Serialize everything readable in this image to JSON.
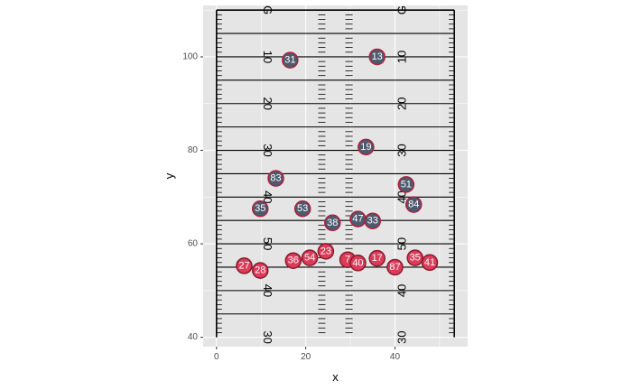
{
  "chart_data": {
    "type": "scatter",
    "title": "",
    "xlabel": "x",
    "ylabel": "y",
    "xlim": [
      -3,
      56.3
    ],
    "ylim": [
      38,
      111
    ],
    "x_ticks": [
      0,
      20,
      40
    ],
    "y_ticks": [
      40,
      60,
      80,
      100
    ],
    "grid": true,
    "legend": "none",
    "colors": {
      "panel_bg": "#e5e5e5",
      "grid": "#ffffff",
      "field_line": "#000000",
      "offense_fill": "#dc3c5a",
      "offense_stroke": "#8b1a2b",
      "defense_fill": "#4e5a6e",
      "defense_stroke": "#b01f3d"
    },
    "field": {
      "x_min": 0,
      "x_max": 53.3,
      "y_min": 40,
      "y_max": 110,
      "hash_x": [
        23.6,
        29.7
      ],
      "yard_lines": [
        {
          "y": 45,
          "label": ""
        },
        {
          "y": 50,
          "label": "40"
        },
        {
          "y": 55,
          "label": ""
        },
        {
          "y": 60,
          "label": "50"
        },
        {
          "y": 65,
          "label": ""
        },
        {
          "y": 70,
          "label": "40"
        },
        {
          "y": 75,
          "label": ""
        },
        {
          "y": 80,
          "label": "30"
        },
        {
          "y": 85,
          "label": ""
        },
        {
          "y": 90,
          "label": "20"
        },
        {
          "y": 95,
          "label": ""
        },
        {
          "y": 100,
          "label": "10"
        },
        {
          "y": 105,
          "label": ""
        },
        {
          "y": 110,
          "label": "G"
        }
      ],
      "extra_number_labels": [
        {
          "y": 40,
          "label": "30"
        }
      ]
    },
    "series": [
      {
        "team": "defense",
        "points": [
          {
            "label": "31",
            "x": 16.5,
            "y": 99.3
          },
          {
            "label": "13",
            "x": 36.0,
            "y": 100.0
          },
          {
            "label": "19",
            "x": 33.5,
            "y": 80.7
          },
          {
            "label": "83",
            "x": 13.3,
            "y": 74.0
          },
          {
            "label": "51",
            "x": 42.5,
            "y": 72.7
          },
          {
            "label": "35",
            "x": 9.8,
            "y": 67.5
          },
          {
            "label": "53",
            "x": 19.3,
            "y": 67.5
          },
          {
            "label": "84",
            "x": 44.2,
            "y": 68.4
          },
          {
            "label": "38",
            "x": 26.0,
            "y": 64.5
          },
          {
            "label": "47",
            "x": 31.7,
            "y": 65.3
          },
          {
            "label": "33",
            "x": 35.0,
            "y": 64.9
          }
        ]
      },
      {
        "team": "offense",
        "points": [
          {
            "label": "27",
            "x": 6.2,
            "y": 55.3
          },
          {
            "label": "28",
            "x": 9.8,
            "y": 54.3
          },
          {
            "label": "36",
            "x": 17.2,
            "y": 56.4
          },
          {
            "label": "54",
            "x": 20.9,
            "y": 57.0
          },
          {
            "label": "23",
            "x": 24.5,
            "y": 58.4
          },
          {
            "label": "7",
            "x": 29.4,
            "y": 56.6
          },
          {
            "label": "40",
            "x": 31.7,
            "y": 55.9
          },
          {
            "label": "17",
            "x": 36.0,
            "y": 56.9
          },
          {
            "label": "87",
            "x": 40.0,
            "y": 55.0
          },
          {
            "label": "35",
            "x": 44.5,
            "y": 57.0
          },
          {
            "label": "41",
            "x": 47.8,
            "y": 56.0
          }
        ]
      }
    ]
  }
}
